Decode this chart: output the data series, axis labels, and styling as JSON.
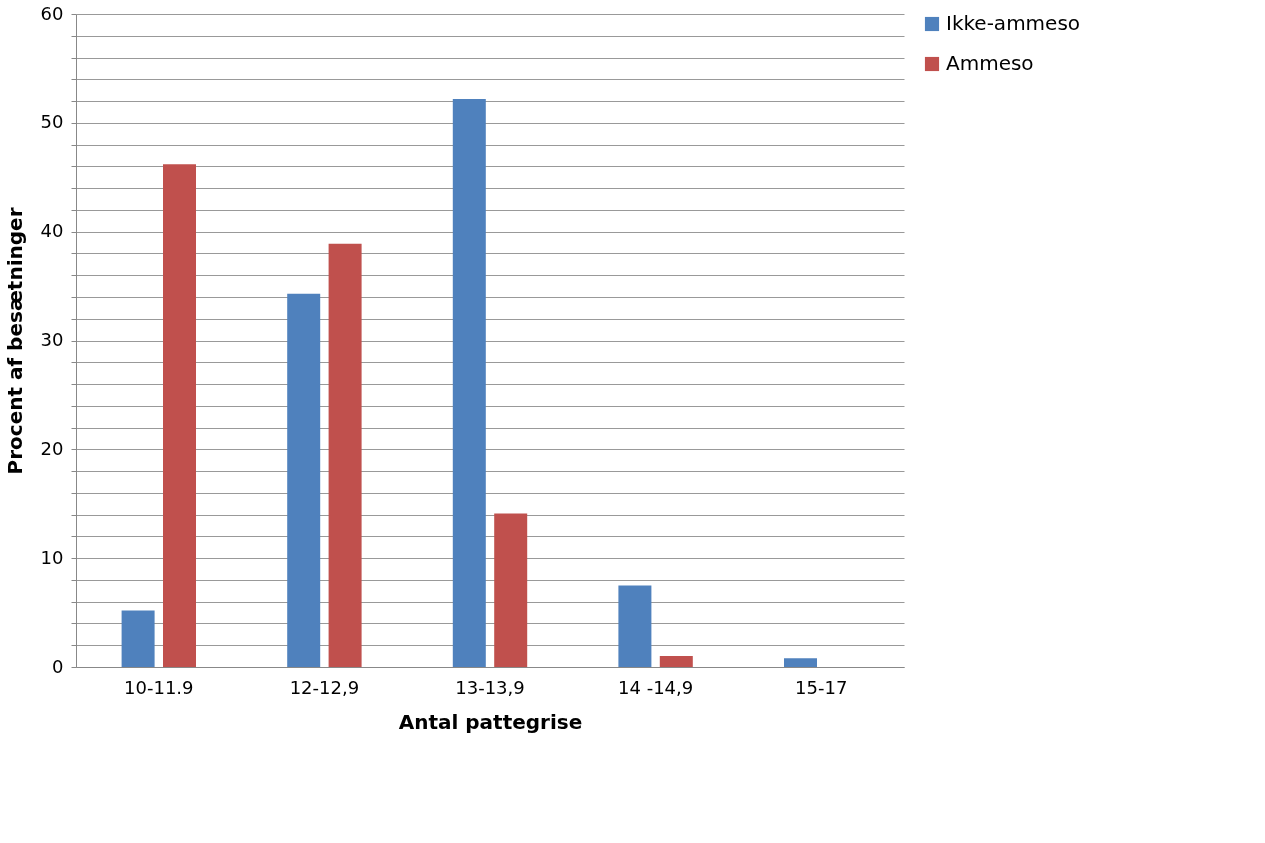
{
  "chart_data": {
    "type": "bar",
    "xlabel": "Antal pattegrise",
    "ylabel": "Procent af besætninger",
    "categories": [
      "10-11.9",
      "12-12,9",
      "13-13,9",
      "14 -14,9",
      "15-17"
    ],
    "series": [
      {
        "name": "Ikke-ammeso",
        "color": "#4f81bd",
        "values": [
          5.2,
          34.3,
          52.2,
          7.5,
          0.8
        ]
      },
      {
        "name": "Ammeso",
        "color": "#c0504d",
        "values": [
          46.2,
          38.9,
          14.1,
          1.0,
          null
        ]
      }
    ],
    "ylim": [
      0,
      60
    ],
    "yticks": [
      0,
      {
        "value": 2,
        "label": null
      },
      {
        "value": 4,
        "label": null
      },
      {
        "value": 6,
        "label": null
      },
      {
        "value": 8,
        "label": null
      },
      10,
      {
        "value": 12,
        "label": null
      },
      {
        "value": 14,
        "label": null
      },
      {
        "value": 16,
        "label": null
      },
      {
        "value": 18,
        "label": null
      },
      20,
      {
        "value": 22,
        "label": null
      },
      {
        "value": 24,
        "label": null
      },
      {
        "value": 26,
        "label": null
      },
      {
        "value": 28,
        "label": null
      },
      30,
      {
        "value": 32,
        "label": null
      },
      {
        "value": 34,
        "label": null
      },
      {
        "value": 36,
        "label": null
      },
      {
        "value": 38,
        "label": null
      },
      40,
      {
        "value": 42,
        "label": null
      },
      {
        "value": 44,
        "label": null
      },
      {
        "value": 46,
        "label": null
      },
      {
        "value": 48,
        "label": null
      },
      50,
      {
        "value": 52,
        "label": null
      },
      {
        "value": 54,
        "label": null
      },
      {
        "value": 56,
        "label": null
      },
      {
        "value": 58,
        "label": null
      },
      60
    ],
    "grid": true,
    "legend": "right"
  }
}
